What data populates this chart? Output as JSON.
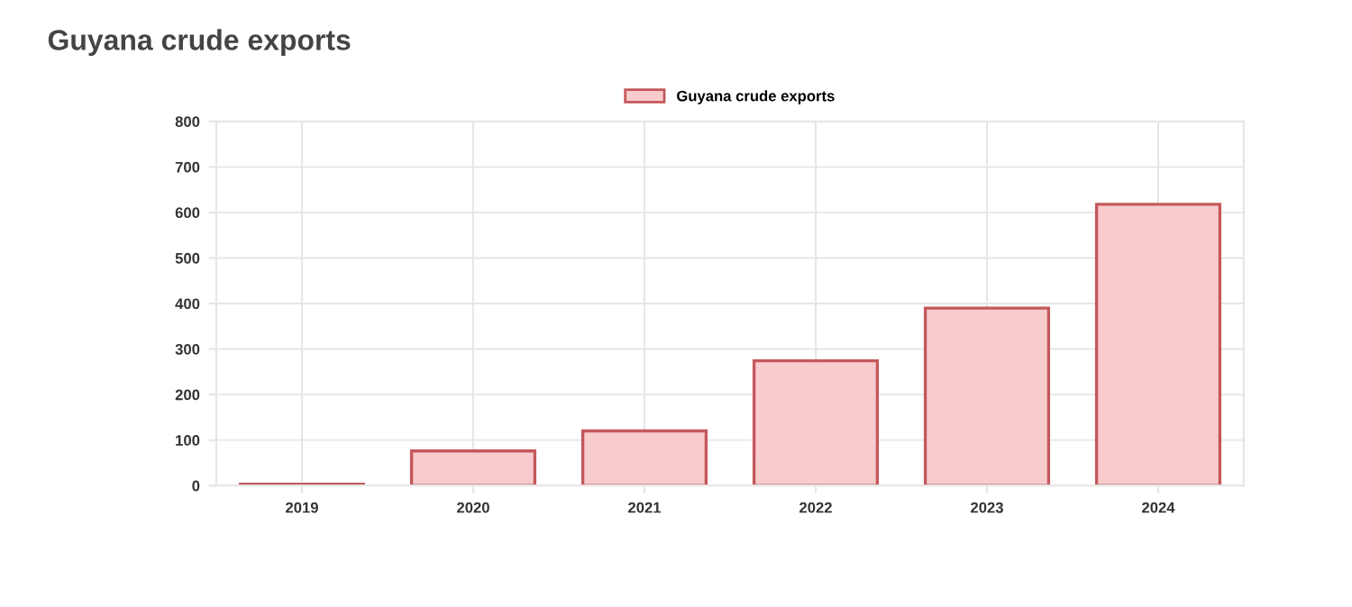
{
  "chart_data": {
    "type": "bar",
    "title": "Guyana crude exports",
    "categories": [
      "2019",
      "2020",
      "2021",
      "2022",
      "2023",
      "2024"
    ],
    "series": [
      {
        "name": "Guyana crude exports",
        "color": "#f8cccd",
        "values": [
          3,
          76,
          120,
          274,
          390,
          618
        ]
      }
    ],
    "ylim": [
      0,
      800
    ],
    "yticks": [
      0,
      100,
      200,
      300,
      400,
      500,
      600,
      700,
      800
    ],
    "grid": true,
    "legend": "top"
  }
}
